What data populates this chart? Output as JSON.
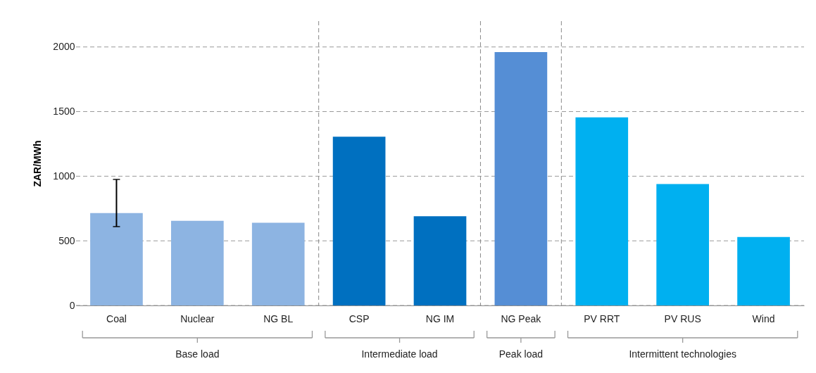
{
  "chart_data": {
    "type": "bar",
    "ylabel": "ZAR/MWh",
    "categories": [
      "Coal",
      "Nuclear",
      "NG BL",
      "CSP",
      "NG IM",
      "NG Peak",
      "PV RRT",
      "PV RUS",
      "Wind"
    ],
    "values": [
      715,
      655,
      640,
      1305,
      690,
      1960,
      1455,
      940,
      530
    ],
    "colors": [
      "#8db4e2",
      "#8db4e2",
      "#8db4e2",
      "#0070c0",
      "#0070c0",
      "#558ed5",
      "#00b0f0",
      "#00b0f0",
      "#00b0f0"
    ],
    "errors": [
      [
        610,
        975
      ],
      null,
      null,
      null,
      null,
      null,
      null,
      null,
      null
    ],
    "ylim": [
      0,
      2200
    ],
    "yticks": [
      0,
      500,
      1000,
      1500,
      2000
    ],
    "grid": "y",
    "annotations": [
      "Base load",
      "Intermediate load",
      "Peak load",
      "Intermittent technologies"
    ]
  }
}
